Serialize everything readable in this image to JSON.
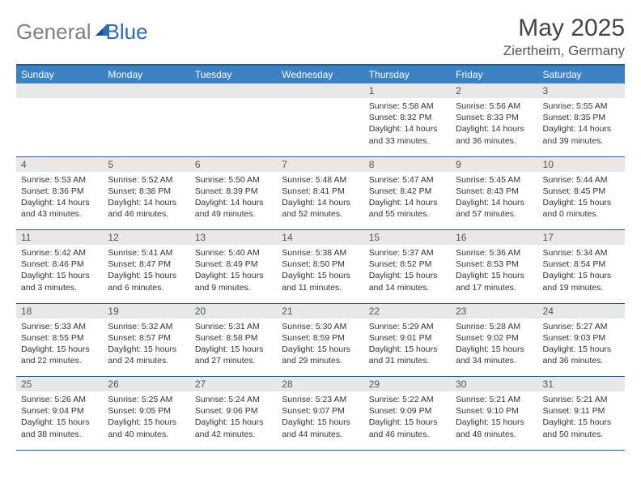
{
  "logo": {
    "general": "General",
    "blue": "Blue"
  },
  "title": "May 2025",
  "location": "Ziertheim, Germany",
  "dow": [
    "Sunday",
    "Monday",
    "Tuesday",
    "Wednesday",
    "Thursday",
    "Friday",
    "Saturday"
  ],
  "colors": {
    "header_blue": "#3b82c4",
    "row_gray": "#e8e8e8",
    "border_blue": "#2a5a8a",
    "logo_gray": "#808080",
    "logo_blue": "#2a6db8"
  },
  "weeks": [
    {
      "nums": [
        "",
        "",
        "",
        "",
        "1",
        "2",
        "3"
      ],
      "cells": [
        {},
        {},
        {},
        {},
        {
          "sunrise": "Sunrise: 5:58 AM",
          "sunset": "Sunset: 8:32 PM",
          "day1": "Daylight: 14 hours",
          "day2": "and 33 minutes."
        },
        {
          "sunrise": "Sunrise: 5:56 AM",
          "sunset": "Sunset: 8:33 PM",
          "day1": "Daylight: 14 hours",
          "day2": "and 36 minutes."
        },
        {
          "sunrise": "Sunrise: 5:55 AM",
          "sunset": "Sunset: 8:35 PM",
          "day1": "Daylight: 14 hours",
          "day2": "and 39 minutes."
        }
      ]
    },
    {
      "nums": [
        "4",
        "5",
        "6",
        "7",
        "8",
        "9",
        "10"
      ],
      "cells": [
        {
          "sunrise": "Sunrise: 5:53 AM",
          "sunset": "Sunset: 8:36 PM",
          "day1": "Daylight: 14 hours",
          "day2": "and 43 minutes."
        },
        {
          "sunrise": "Sunrise: 5:52 AM",
          "sunset": "Sunset: 8:38 PM",
          "day1": "Daylight: 14 hours",
          "day2": "and 46 minutes."
        },
        {
          "sunrise": "Sunrise: 5:50 AM",
          "sunset": "Sunset: 8:39 PM",
          "day1": "Daylight: 14 hours",
          "day2": "and 49 minutes."
        },
        {
          "sunrise": "Sunrise: 5:48 AM",
          "sunset": "Sunset: 8:41 PM",
          "day1": "Daylight: 14 hours",
          "day2": "and 52 minutes."
        },
        {
          "sunrise": "Sunrise: 5:47 AM",
          "sunset": "Sunset: 8:42 PM",
          "day1": "Daylight: 14 hours",
          "day2": "and 55 minutes."
        },
        {
          "sunrise": "Sunrise: 5:45 AM",
          "sunset": "Sunset: 8:43 PM",
          "day1": "Daylight: 14 hours",
          "day2": "and 57 minutes."
        },
        {
          "sunrise": "Sunrise: 5:44 AM",
          "sunset": "Sunset: 8:45 PM",
          "day1": "Daylight: 15 hours",
          "day2": "and 0 minutes."
        }
      ]
    },
    {
      "nums": [
        "11",
        "12",
        "13",
        "14",
        "15",
        "16",
        "17"
      ],
      "cells": [
        {
          "sunrise": "Sunrise: 5:42 AM",
          "sunset": "Sunset: 8:46 PM",
          "day1": "Daylight: 15 hours",
          "day2": "and 3 minutes."
        },
        {
          "sunrise": "Sunrise: 5:41 AM",
          "sunset": "Sunset: 8:47 PM",
          "day1": "Daylight: 15 hours",
          "day2": "and 6 minutes."
        },
        {
          "sunrise": "Sunrise: 5:40 AM",
          "sunset": "Sunset: 8:49 PM",
          "day1": "Daylight: 15 hours",
          "day2": "and 9 minutes."
        },
        {
          "sunrise": "Sunrise: 5:38 AM",
          "sunset": "Sunset: 8:50 PM",
          "day1": "Daylight: 15 hours",
          "day2": "and 11 minutes."
        },
        {
          "sunrise": "Sunrise: 5:37 AM",
          "sunset": "Sunset: 8:52 PM",
          "day1": "Daylight: 15 hours",
          "day2": "and 14 minutes."
        },
        {
          "sunrise": "Sunrise: 5:36 AM",
          "sunset": "Sunset: 8:53 PM",
          "day1": "Daylight: 15 hours",
          "day2": "and 17 minutes."
        },
        {
          "sunrise": "Sunrise: 5:34 AM",
          "sunset": "Sunset: 8:54 PM",
          "day1": "Daylight: 15 hours",
          "day2": "and 19 minutes."
        }
      ]
    },
    {
      "nums": [
        "18",
        "19",
        "20",
        "21",
        "22",
        "23",
        "24"
      ],
      "cells": [
        {
          "sunrise": "Sunrise: 5:33 AM",
          "sunset": "Sunset: 8:55 PM",
          "day1": "Daylight: 15 hours",
          "day2": "and 22 minutes."
        },
        {
          "sunrise": "Sunrise: 5:32 AM",
          "sunset": "Sunset: 8:57 PM",
          "day1": "Daylight: 15 hours",
          "day2": "and 24 minutes."
        },
        {
          "sunrise": "Sunrise: 5:31 AM",
          "sunset": "Sunset: 8:58 PM",
          "day1": "Daylight: 15 hours",
          "day2": "and 27 minutes."
        },
        {
          "sunrise": "Sunrise: 5:30 AM",
          "sunset": "Sunset: 8:59 PM",
          "day1": "Daylight: 15 hours",
          "day2": "and 29 minutes."
        },
        {
          "sunrise": "Sunrise: 5:29 AM",
          "sunset": "Sunset: 9:01 PM",
          "day1": "Daylight: 15 hours",
          "day2": "and 31 minutes."
        },
        {
          "sunrise": "Sunrise: 5:28 AM",
          "sunset": "Sunset: 9:02 PM",
          "day1": "Daylight: 15 hours",
          "day2": "and 34 minutes."
        },
        {
          "sunrise": "Sunrise: 5:27 AM",
          "sunset": "Sunset: 9:03 PM",
          "day1": "Daylight: 15 hours",
          "day2": "and 36 minutes."
        }
      ]
    },
    {
      "nums": [
        "25",
        "26",
        "27",
        "28",
        "29",
        "30",
        "31"
      ],
      "cells": [
        {
          "sunrise": "Sunrise: 5:26 AM",
          "sunset": "Sunset: 9:04 PM",
          "day1": "Daylight: 15 hours",
          "day2": "and 38 minutes."
        },
        {
          "sunrise": "Sunrise: 5:25 AM",
          "sunset": "Sunset: 9:05 PM",
          "day1": "Daylight: 15 hours",
          "day2": "and 40 minutes."
        },
        {
          "sunrise": "Sunrise: 5:24 AM",
          "sunset": "Sunset: 9:06 PM",
          "day1": "Daylight: 15 hours",
          "day2": "and 42 minutes."
        },
        {
          "sunrise": "Sunrise: 5:23 AM",
          "sunset": "Sunset: 9:07 PM",
          "day1": "Daylight: 15 hours",
          "day2": "and 44 minutes."
        },
        {
          "sunrise": "Sunrise: 5:22 AM",
          "sunset": "Sunset: 9:09 PM",
          "day1": "Daylight: 15 hours",
          "day2": "and 46 minutes."
        },
        {
          "sunrise": "Sunrise: 5:21 AM",
          "sunset": "Sunset: 9:10 PM",
          "day1": "Daylight: 15 hours",
          "day2": "and 48 minutes."
        },
        {
          "sunrise": "Sunrise: 5:21 AM",
          "sunset": "Sunset: 9:11 PM",
          "day1": "Daylight: 15 hours",
          "day2": "and 50 minutes."
        }
      ]
    }
  ]
}
